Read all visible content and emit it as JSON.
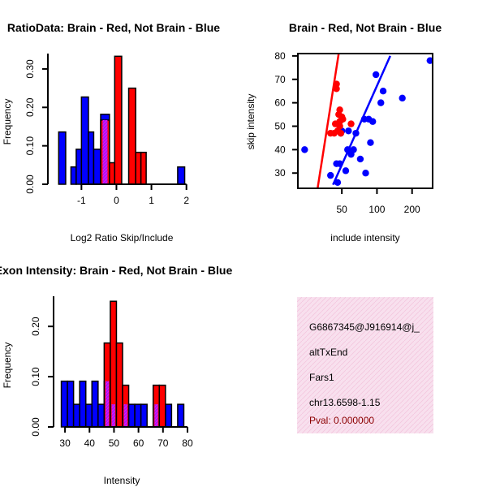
{
  "chart_data": [
    {
      "type": "histogram",
      "title": "RatioData: Brain - Red, Not Brain - Blue",
      "xlabel": "Log2 Ratio Skip/Include",
      "ylabel": "Frequency",
      "xlim": [
        -1.75,
        2.1
      ],
      "ylim": [
        0,
        0.34
      ],
      "xticks": [
        -1,
        0,
        1,
        2
      ],
      "yticks": [
        0.0,
        0.1,
        0.2,
        0.3
      ],
      "ytick_labels": [
        "0.00",
        "0.10",
        "0.20",
        "0.30"
      ],
      "series": [
        {
          "name": "Not Brain",
          "color": "#0000FF",
          "bins": [
            {
              "x0": -1.65,
              "x1": -1.45,
              "value": 0.136
            },
            {
              "x0": -1.3,
              "x1": -1.15,
              "value": 0.045
            },
            {
              "x0": -1.15,
              "x1": -1.0,
              "value": 0.091
            },
            {
              "x0": -1.0,
              "x1": -0.8,
              "value": 0.227
            },
            {
              "x0": -0.8,
              "x1": -0.65,
              "value": 0.136
            },
            {
              "x0": -0.65,
              "x1": -0.45,
              "value": 0.091
            },
            {
              "x0": -0.45,
              "x1": -0.2,
              "value": 0.182
            },
            {
              "x0": 1.75,
              "x1": 1.95,
              "value": 0.045
            }
          ]
        },
        {
          "name": "Brain",
          "color": "#FF0000",
          "bins": [
            {
              "x0": -0.45,
              "x1": -0.2,
              "value": 0.167
            },
            {
              "x0": -0.2,
              "x1": -0.05,
              "value": 0.056
            },
            {
              "x0": -0.05,
              "x1": 0.15,
              "value": 0.333
            },
            {
              "x0": 0.35,
              "x1": 0.55,
              "value": 0.25
            },
            {
              "x0": 0.55,
              "x1": 0.7,
              "value": 0.083
            },
            {
              "x0": 0.7,
              "x1": 0.85,
              "value": 0.083
            }
          ]
        }
      ],
      "overlap_color": "#A020F0"
    },
    {
      "type": "scatter",
      "title": "Brain - Red, Not Brain - Blue",
      "xlabel": "include intensity",
      "ylabel": "skip intensity",
      "xscale": "log",
      "xlim": [
        21,
        300
      ],
      "ylim": [
        23.5,
        81
      ],
      "xticks": [
        50,
        100,
        200
      ],
      "yticks": [
        30,
        40,
        50,
        60,
        70,
        80
      ],
      "series": [
        {
          "name": "Not Brain",
          "color": "#0000FF",
          "points": [
            [
              24,
              40
            ],
            [
              40,
              29
            ],
            [
              45,
              34
            ],
            [
              46,
              26
            ],
            [
              48,
              34
            ],
            [
              49,
              47
            ],
            [
              50,
              48
            ],
            [
              54,
              31
            ],
            [
              56,
              40
            ],
            [
              57,
              48
            ],
            [
              60,
              38
            ],
            [
              63,
              40
            ],
            [
              66,
              47
            ],
            [
              72,
              36
            ],
            [
              78,
              53
            ],
            [
              80,
              30
            ],
            [
              85,
              53
            ],
            [
              88,
              43
            ],
            [
              92,
              52
            ],
            [
              98,
              72
            ],
            [
              108,
              60
            ],
            [
              113,
              65
            ],
            [
              165,
              62
            ],
            [
              285,
              78
            ]
          ],
          "fit_line": [
            [
              42,
              25
            ],
            [
              130,
              80
            ]
          ]
        },
        {
          "name": "Brain",
          "color": "#FF0000",
          "points": [
            [
              40,
              47
            ],
            [
              43,
              47
            ],
            [
              44,
              51
            ],
            [
              45,
              66
            ],
            [
              45,
              68
            ],
            [
              46,
              48
            ],
            [
              47,
              55
            ],
            [
              48,
              52
            ],
            [
              48,
              57
            ],
            [
              48,
              50
            ],
            [
              49,
              47
            ],
            [
              50,
              54
            ],
            [
              51,
              53
            ],
            [
              60,
              51
            ]
          ],
          "fit_line": [
            [
              31,
              23.5
            ],
            [
              47,
              81
            ]
          ]
        }
      ]
    },
    {
      "type": "histogram",
      "title": "Exon Intensity: Brain - Red, Not Brain - Blue",
      "xlabel": "Intensity",
      "ylabel": "Frequency",
      "xlim": [
        26,
        81
      ],
      "ylim": [
        0,
        0.26
      ],
      "xticks": [
        30,
        40,
        50,
        60,
        70,
        80
      ],
      "yticks": [
        0.0,
        0.1,
        0.2
      ],
      "ytick_labels": [
        "0.00",
        "0.10",
        "0.20"
      ],
      "series": [
        {
          "name": "Not Brain",
          "color": "#0000FF",
          "bins": [
            {
              "x0": 28.5,
              "x1": 31,
              "value": 0.091
            },
            {
              "x0": 31,
              "x1": 33.5,
              "value": 0.091
            },
            {
              "x0": 33.5,
              "x1": 36,
              "value": 0.045
            },
            {
              "x0": 36,
              "x1": 38.5,
              "value": 0.091
            },
            {
              "x0": 38.5,
              "x1": 41,
              "value": 0.045
            },
            {
              "x0": 41,
              "x1": 43.5,
              "value": 0.091
            },
            {
              "x0": 43.5,
              "x1": 46,
              "value": 0.045
            },
            {
              "x0": 46,
              "x1": 48.5,
              "value": 0.091
            },
            {
              "x0": 48.5,
              "x1": 51,
              "value": 0.045
            },
            {
              "x0": 53.5,
              "x1": 56,
              "value": 0.045
            },
            {
              "x0": 56,
              "x1": 58.5,
              "value": 0.045
            },
            {
              "x0": 58.5,
              "x1": 61,
              "value": 0.045
            },
            {
              "x0": 61,
              "x1": 63.5,
              "value": 0.045
            },
            {
              "x0": 66,
              "x1": 68.5,
              "value": 0.045
            },
            {
              "x0": 71,
              "x1": 73.5,
              "value": 0.045
            },
            {
              "x0": 76,
              "x1": 78.5,
              "value": 0.045
            }
          ]
        },
        {
          "name": "Brain",
          "color": "#FF0000",
          "bins": [
            {
              "x0": 46,
              "x1": 48.5,
              "value": 0.167
            },
            {
              "x0": 48.5,
              "x1": 51,
              "value": 0.25
            },
            {
              "x0": 51,
              "x1": 53.5,
              "value": 0.167
            },
            {
              "x0": 53.5,
              "x1": 56,
              "value": 0.083
            },
            {
              "x0": 66,
              "x1": 68.5,
              "value": 0.083
            },
            {
              "x0": 68.5,
              "x1": 71,
              "value": 0.083
            }
          ]
        }
      ],
      "overlap_color": "#A020F0"
    }
  ],
  "info_panel": {
    "background": "#F8E0EE",
    "lines": [
      "G6867345@J916914@j_",
      "altTxEnd",
      "Fars1",
      "chr13.6598-1.15"
    ],
    "pval": "Pval: 0.000000",
    "pval_color": "#8B0000"
  }
}
